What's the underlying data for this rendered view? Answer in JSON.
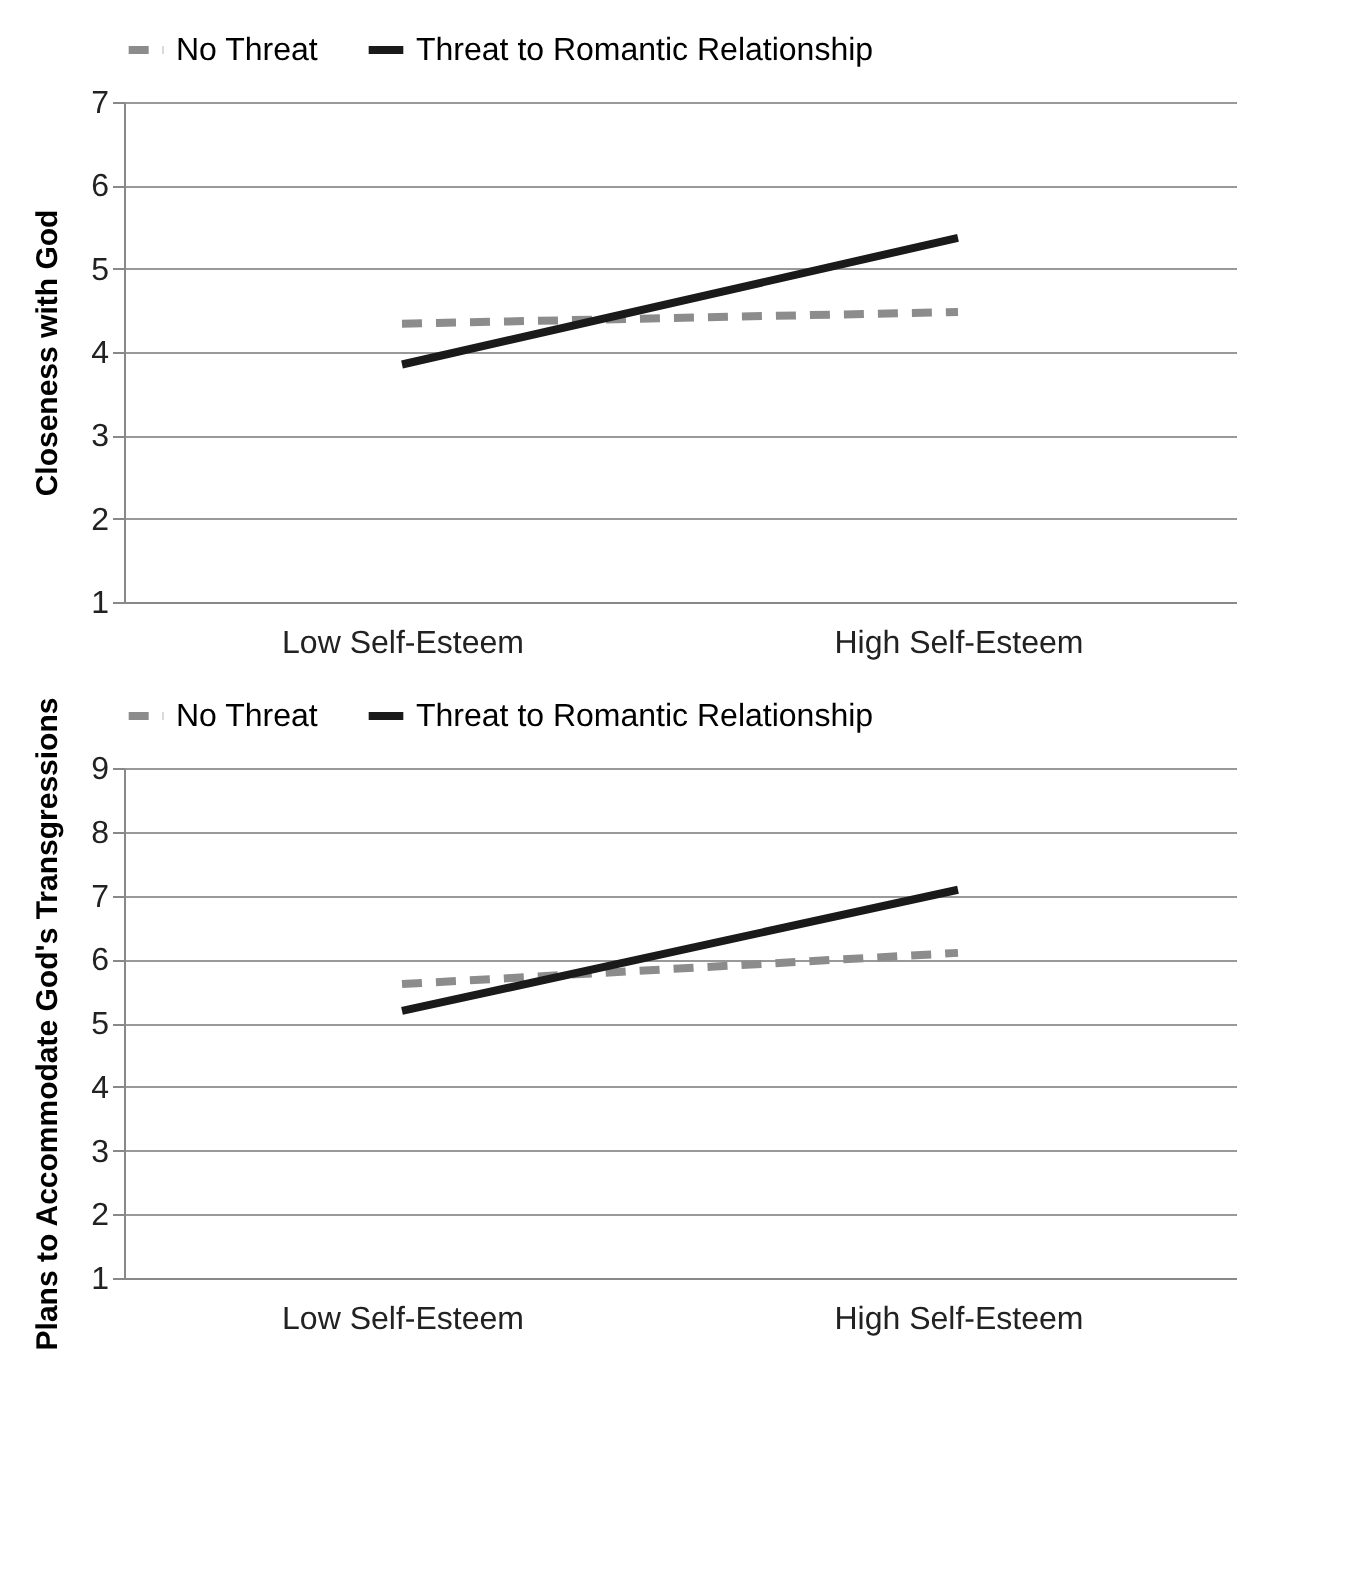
{
  "chart_data": [
    {
      "type": "line",
      "ylabel": "Closeness with God",
      "categories": [
        "Low Self-Esteem",
        "High Self-Esteem"
      ],
      "ylim": [
        1,
        7
      ],
      "yticks": [
        1,
        2,
        3,
        4,
        5,
        6,
        7
      ],
      "grid": "y",
      "legend": "top",
      "marker": "none",
      "series": [
        {
          "name": "No Threat",
          "color": "#8c8c8c",
          "line_style": "dashed",
          "values": [
            4.34,
            4.48
          ]
        },
        {
          "name": "Threat to Romantic Relationship",
          "color": "#1a1a1a",
          "line_style": "solid",
          "values": [
            3.85,
            5.37
          ]
        }
      ]
    },
    {
      "type": "line",
      "ylabel": "Plans to Accommodate God's Transgressions",
      "categories": [
        "Low Self-Esteem",
        "High Self-Esteem"
      ],
      "ylim": [
        1,
        9
      ],
      "yticks": [
        1,
        2,
        3,
        4,
        5,
        6,
        7,
        8,
        9
      ],
      "grid": "y",
      "legend": "top",
      "marker": "none",
      "series": [
        {
          "name": "No Threat",
          "color": "#8c8c8c",
          "line_style": "dashed",
          "values": [
            5.61,
            6.1
          ]
        },
        {
          "name": "Threat to Romantic Relationship",
          "color": "#1a1a1a",
          "line_style": "solid",
          "values": [
            5.19,
            7.09
          ]
        }
      ]
    }
  ]
}
